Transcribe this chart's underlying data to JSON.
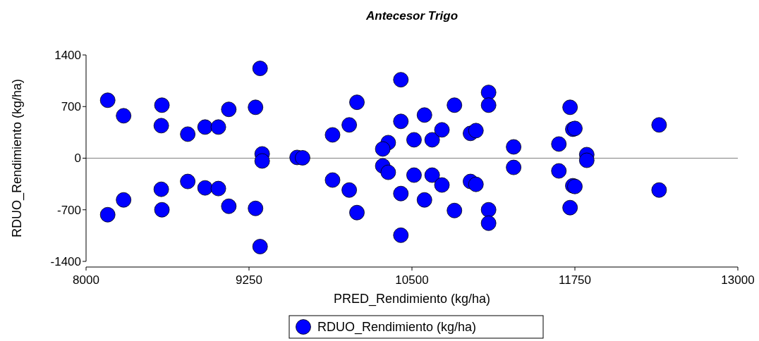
{
  "chart_data": {
    "type": "scatter",
    "title": "Antecesor Trigo",
    "xlabel": "PRED_Rendimiento (kg/ha)",
    "ylabel": "RDUO_Rendimiento (kg/ha)",
    "xlim": [
      8000,
      13000
    ],
    "xticks": [
      8000,
      9250,
      10500,
      11750,
      13000
    ],
    "ylim": [
      -1400,
      1400
    ],
    "yticks": [
      -1400,
      -700,
      0,
      700,
      1400
    ],
    "grid": false,
    "legend": "bottom",
    "marker": "circle",
    "ref_lines": [
      {
        "axis": "y",
        "value": 0,
        "color": "#808080"
      }
    ],
    "series": [
      {
        "name": "RDUO_Rendimiento (kg/ha)",
        "color": "#0000ff",
        "x": [
          8166,
          8166,
          8288,
          8288,
          8582,
          8582,
          8577,
          8577,
          8780,
          8780,
          8913,
          8913,
          9095,
          9095,
          9015,
          9015,
          9300,
          9300,
          9335,
          9335,
          9351,
          9351,
          9619,
          9661,
          9891,
          9891,
          10019,
          10019,
          10078,
          10078,
          10318,
          10276,
          10276,
          10318,
          10415,
          10415,
          10415,
          10415,
          10516,
          10516,
          10596,
          10596,
          10655,
          10655,
          10730,
          10730,
          10826,
          10826,
          10949,
          10949,
          10991,
          10991,
          11088,
          11088,
          11088,
          11088,
          11280,
          11280,
          11713,
          11713,
          11734,
          11750,
          11734,
          11750,
          11627,
          11627,
          11841,
          11841,
          12396,
          12396
        ],
        "values": [
          786,
          -767,
          575,
          -566,
          719,
          -700,
          441,
          -422,
          326,
          -316,
          422,
          -403,
          662,
          -652,
          422,
          -412,
          690,
          -681,
          1218,
          -1199,
          58,
          -38,
          10,
          5,
          316,
          -297,
          451,
          -432,
          758,
          -738,
          211,
          125,
          -105,
          -192,
          1064,
          -1045,
          499,
          -480,
          249,
          -230,
          585,
          -566,
          249,
          -230,
          384,
          -364,
          719,
          -710,
          336,
          -316,
          374,
          -355,
          892,
          719,
          -700,
          -882,
          153,
          -125,
          690,
          -671,
          393,
          403,
          -374,
          -384,
          192,
          -173,
          48,
          -29,
          451,
          -432
        ]
      }
    ]
  }
}
